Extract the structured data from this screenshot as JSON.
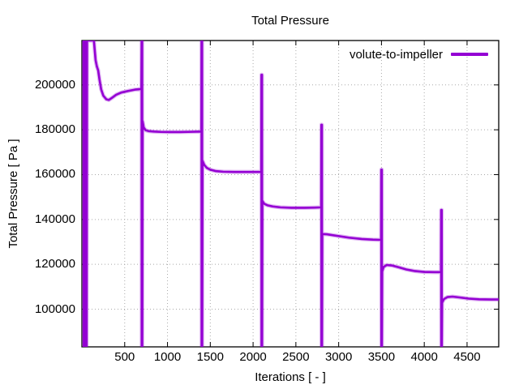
{
  "figure": {
    "background": "#ffffff"
  },
  "colors": {
    "series": "#9400d3",
    "grid": "#a9a9a9",
    "border": "#000000",
    "text": "#000000"
  },
  "chart_data": {
    "type": "line",
    "title": "Total Pressure",
    "xlabel": "Iterations [ - ]",
    "ylabel": "Total Pressure [ Pa ]",
    "xlim": [
      0,
      4870
    ],
    "ylim": [
      83200,
      219800
    ],
    "x_ticks": [
      500,
      1000,
      1500,
      2000,
      2500,
      3000,
      3500,
      4000,
      4500
    ],
    "y_ticks": [
      100000,
      120000,
      140000,
      160000,
      180000,
      200000
    ],
    "grid": "dotted",
    "legend": {
      "position": "top-right-inside",
      "entries": [
        {
          "label": "volute-to-impeller",
          "color": "#9400d3"
        }
      ]
    },
    "series": [
      {
        "name": "volute-to-impeller",
        "color": "#9400d3",
        "points": [
          [
            20,
            219800
          ],
          [
            22,
            83200
          ],
          [
            26,
            219800
          ],
          [
            30,
            83200
          ],
          [
            34,
            219800
          ],
          [
            38,
            83200
          ],
          [
            42,
            219800
          ],
          [
            46,
            83200
          ],
          [
            50,
            219800
          ],
          [
            55,
            83200
          ],
          [
            60,
            219800
          ],
          [
            62,
            219800
          ],
          [
            140,
            219800
          ],
          [
            160,
            211000
          ],
          [
            175,
            208200
          ],
          [
            190,
            206500
          ],
          [
            205,
            202500
          ],
          [
            225,
            198000
          ],
          [
            250,
            195200
          ],
          [
            285,
            193600
          ],
          [
            315,
            193300
          ],
          [
            350,
            194200
          ],
          [
            400,
            195600
          ],
          [
            460,
            196600
          ],
          [
            540,
            197300
          ],
          [
            620,
            197900
          ],
          [
            695,
            198200
          ],
          [
            698,
            219800
          ],
          [
            699,
            83200
          ],
          [
            700,
            219800
          ],
          [
            701,
            83200
          ],
          [
            702,
            219800
          ],
          [
            703,
            83200
          ],
          [
            704,
            219800
          ],
          [
            705,
            83200
          ],
          [
            709,
            183800
          ],
          [
            722,
            181000
          ],
          [
            745,
            179800
          ],
          [
            780,
            179400
          ],
          [
            840,
            179200
          ],
          [
            920,
            179050
          ],
          [
            1020,
            179000
          ],
          [
            1150,
            179000
          ],
          [
            1290,
            179100
          ],
          [
            1396,
            179200
          ],
          [
            1398,
            219800
          ],
          [
            1399,
            83200
          ],
          [
            1400,
            219800
          ],
          [
            1401,
            83200
          ],
          [
            1402,
            219800
          ],
          [
            1403,
            83200
          ],
          [
            1404,
            219800
          ],
          [
            1405,
            83200
          ],
          [
            1409,
            166200
          ],
          [
            1430,
            164300
          ],
          [
            1460,
            163000
          ],
          [
            1500,
            162200
          ],
          [
            1560,
            161600
          ],
          [
            1650,
            161300
          ],
          [
            1780,
            161200
          ],
          [
            1950,
            161200
          ],
          [
            2096,
            161200
          ],
          [
            2098,
            204500
          ],
          [
            2099,
            83200
          ],
          [
            2100,
            204500
          ],
          [
            2101,
            83200
          ],
          [
            2102,
            204500
          ],
          [
            2103,
            83200
          ],
          [
            2104,
            204500
          ],
          [
            2105,
            83200
          ],
          [
            2108,
            148300
          ],
          [
            2130,
            147000
          ],
          [
            2170,
            146300
          ],
          [
            2230,
            145800
          ],
          [
            2320,
            145400
          ],
          [
            2450,
            145200
          ],
          [
            2600,
            145200
          ],
          [
            2720,
            145300
          ],
          [
            2796,
            145400
          ],
          [
            2798,
            182200
          ],
          [
            2799,
            83200
          ],
          [
            2800,
            182200
          ],
          [
            2801,
            83200
          ],
          [
            2802,
            182200
          ],
          [
            2803,
            83200
          ],
          [
            2804,
            182200
          ],
          [
            2805,
            83200
          ],
          [
            2808,
            133500
          ],
          [
            2860,
            133400
          ],
          [
            2980,
            132700
          ],
          [
            3120,
            131900
          ],
          [
            3270,
            131300
          ],
          [
            3400,
            131000
          ],
          [
            3496,
            130900
          ],
          [
            3498,
            162200
          ],
          [
            3499,
            83200
          ],
          [
            3500,
            162200
          ],
          [
            3501,
            83200
          ],
          [
            3502,
            162200
          ],
          [
            3503,
            83200
          ],
          [
            3504,
            162200
          ],
          [
            3505,
            83200
          ],
          [
            3508,
            116800
          ],
          [
            3525,
            118800
          ],
          [
            3560,
            119700
          ],
          [
            3620,
            119500
          ],
          [
            3700,
            118700
          ],
          [
            3790,
            117700
          ],
          [
            3890,
            117000
          ],
          [
            4000,
            116600
          ],
          [
            4120,
            116500
          ],
          [
            4196,
            116500
          ],
          [
            4198,
            144200
          ],
          [
            4199,
            83200
          ],
          [
            4200,
            144200
          ],
          [
            4201,
            83200
          ],
          [
            4202,
            144200
          ],
          [
            4203,
            83200
          ],
          [
            4204,
            144200
          ],
          [
            4205,
            83200
          ],
          [
            4208,
            102900
          ],
          [
            4230,
            104500
          ],
          [
            4270,
            105400
          ],
          [
            4330,
            105600
          ],
          [
            4420,
            105200
          ],
          [
            4520,
            104700
          ],
          [
            4640,
            104400
          ],
          [
            4780,
            104300
          ],
          [
            4870,
            104300
          ]
        ]
      }
    ]
  }
}
